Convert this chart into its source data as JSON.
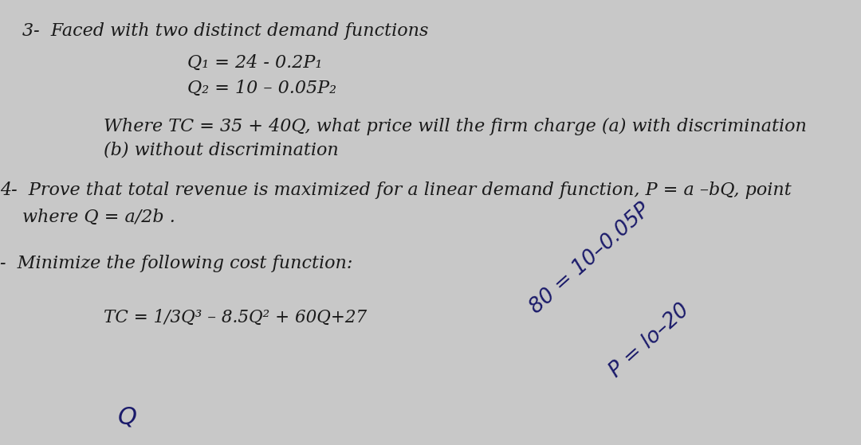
{
  "background_color": "#c8c8c8",
  "text_color": "#1a1a1a",
  "title_top": "3-  Faced with two distinct demand functions",
  "line1": "Q₁ = 24 - 0.2P₁",
  "line2": "Q₂ = 10 – 0.05P₂",
  "para1_a": "Where TC = 35 + 40Q, what price will the firm charge (a) with discrimination",
  "para1_b": "(b) without discrimination",
  "section4_a": "4-  Prove that total revenue is maximized for a linear demand function, P = a –bQ, point",
  "section4_b": "where Q = a/2b .",
  "section5_label": "-  Minimize the following cost function:",
  "tc_formula": "TC = 1/3Q³ – 8.5Q² + 60Q+27",
  "handwritten1": "80 = 10–0.05P",
  "handwritten2": "P = lo–20",
  "hw_color": "#1a1a6a",
  "font_size_main": 16,
  "font_size_formula": 15.5
}
